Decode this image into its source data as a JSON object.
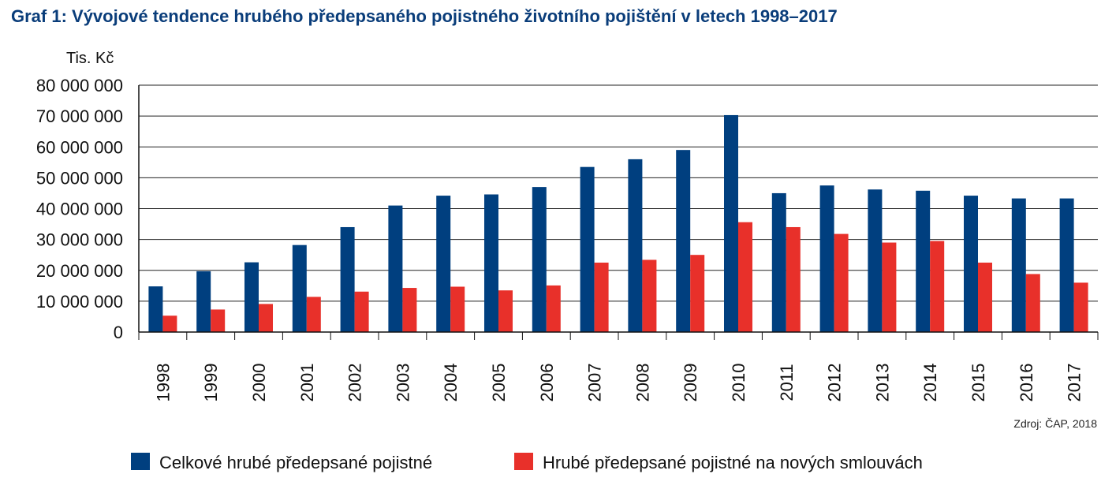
{
  "title": "Graf 1: Vývojové tendence hrubého předepsaného pojistného životního pojištění v letech 1998–2017",
  "source": "Zdroj: ČAP, 2018",
  "chart_data": {
    "type": "bar",
    "title": "Graf 1: Vývojové tendence hrubého předepsaného pojistného životního pojištění v letech 1998–2017",
    "ylabel": "Tis. Kč",
    "xlabel": "",
    "ylim": [
      0,
      80000000
    ],
    "yticks": [
      0,
      10000000,
      20000000,
      30000000,
      40000000,
      50000000,
      60000000,
      70000000,
      80000000
    ],
    "ytick_labels": [
      "0",
      "10 000 000",
      "20 000 000",
      "30 000 000",
      "40 000 000",
      "50 000 000",
      "60 000 000",
      "70 000 000",
      "80 000 000"
    ],
    "grid": true,
    "legend_position": "bottom",
    "categories": [
      "1998",
      "1999",
      "2000",
      "2001",
      "2002",
      "2003",
      "2004",
      "2005",
      "2006",
      "2007",
      "2008",
      "2009",
      "2010",
      "2011",
      "2012",
      "2013",
      "2014",
      "2015",
      "2016",
      "2017"
    ],
    "series": [
      {
        "name": "Celkové hrubé předepsané pojistné",
        "color": "#003f7f",
        "values": [
          14800000,
          19700000,
          22600000,
          28200000,
          34000000,
          41000000,
          44200000,
          44600000,
          47000000,
          53500000,
          56000000,
          59000000,
          70300000,
          45000000,
          47500000,
          46200000,
          45800000,
          44200000,
          43300000,
          43300000
        ]
      },
      {
        "name": "Hrubé předepsané pojistné na nových smlouvách",
        "color": "#e8302a",
        "values": [
          5300000,
          7300000,
          9100000,
          11400000,
          13100000,
          14300000,
          14700000,
          13500000,
          15100000,
          22500000,
          23400000,
          25000000,
          35600000,
          34000000,
          31800000,
          29000000,
          29500000,
          22500000,
          18800000,
          16000000
        ]
      }
    ]
  }
}
